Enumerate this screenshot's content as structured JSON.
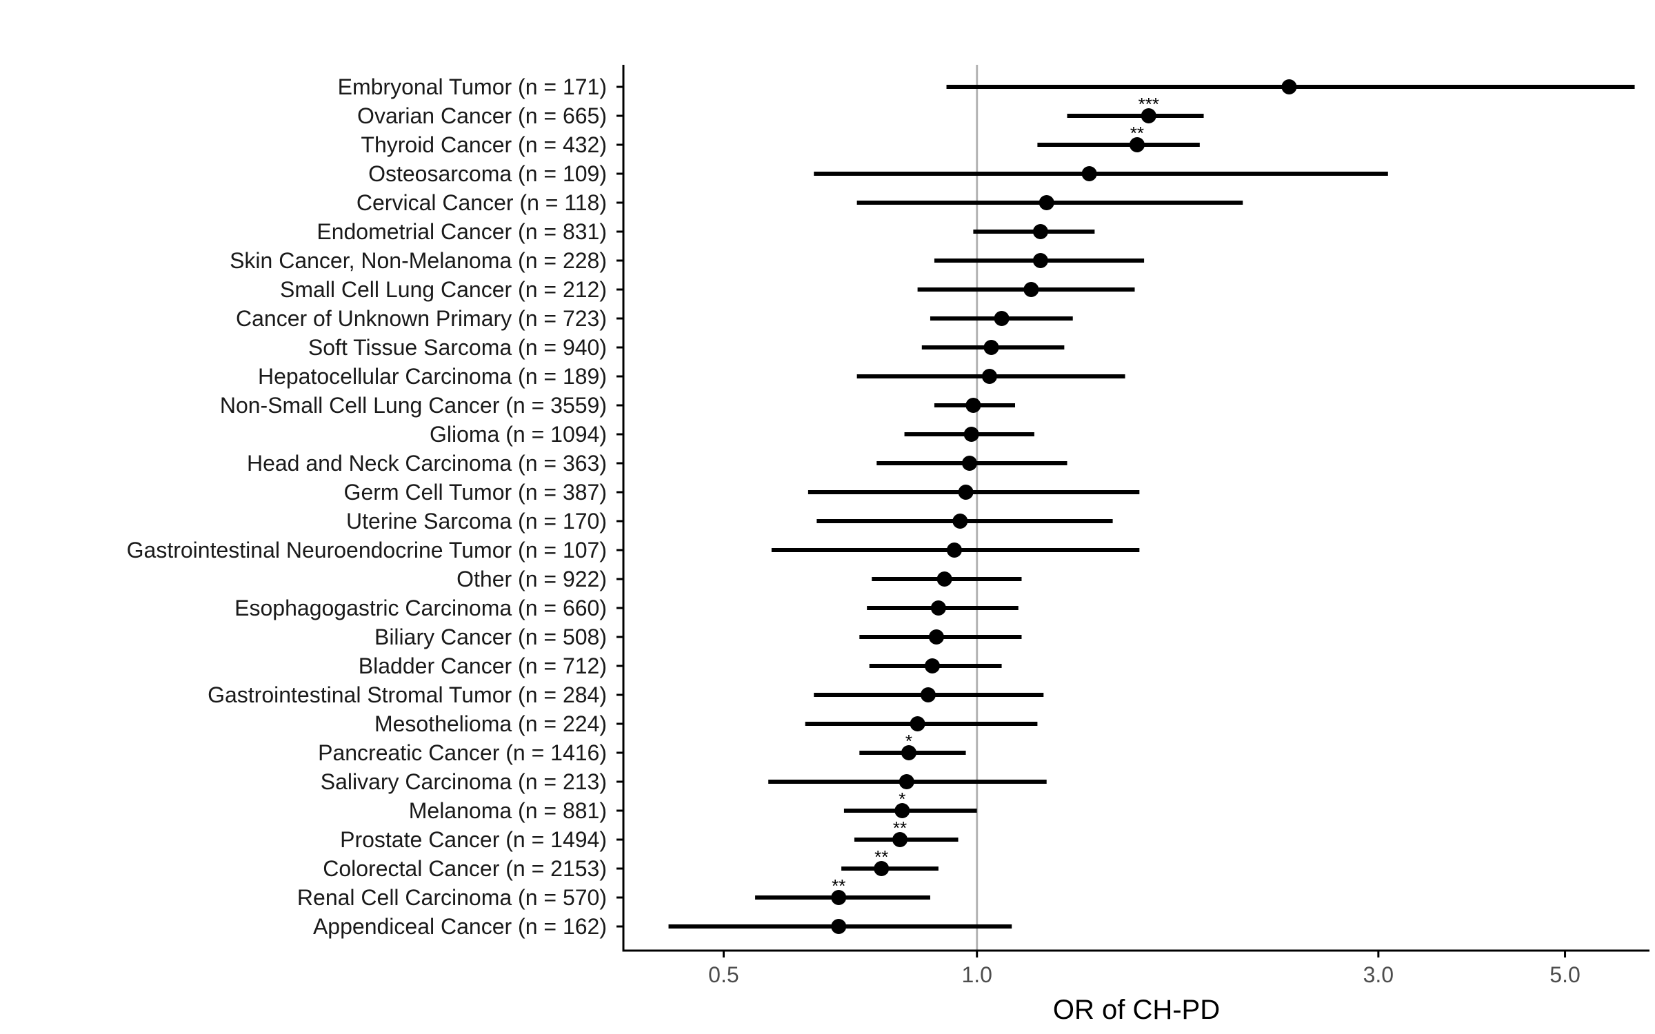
{
  "chart_data": {
    "type": "scatter",
    "subtype": "forest-plot",
    "title": "",
    "xlabel": "OR of CH-PD",
    "ylabel": "",
    "x_scale": "log",
    "xlim": [
      0.38,
      6.3
    ],
    "x_ticks": [
      0.5,
      1.0,
      3.0,
      5.0
    ],
    "x_tick_labels": [
      "0.5",
      "1.0",
      "3.0",
      "5.0"
    ],
    "reference_line": 1.0,
    "grid": false,
    "colors": {
      "points": "#000000",
      "reference_line": "#b3b3b3",
      "axis": "#000000"
    },
    "categories": [
      "Embryonal Tumor (n = 171)",
      "Ovarian Cancer (n = 665)",
      "Thyroid Cancer (n = 432)",
      "Osteosarcoma (n = 109)",
      "Cervical Cancer (n = 118)",
      "Endometrial Cancer (n = 831)",
      "Skin Cancer, Non-Melanoma (n = 228)",
      "Small Cell Lung Cancer (n = 212)",
      "Cancer of Unknown Primary (n = 723)",
      "Soft Tissue Sarcoma (n = 940)",
      "Hepatocellular Carcinoma (n = 189)",
      "Non-Small Cell Lung Cancer (n = 3559)",
      "Glioma (n = 1094)",
      "Head and Neck Carcinoma (n = 363)",
      "Germ Cell Tumor (n = 387)",
      "Uterine Sarcoma (n = 170)",
      "Gastrointestinal Neuroendocrine Tumor (n = 107)",
      "Other (n = 922)",
      "Esophagogastric Carcinoma (n = 660)",
      "Biliary Cancer (n = 508)",
      "Bladder Cancer (n = 712)",
      "Gastrointestinal Stromal Tumor (n = 284)",
      "Mesothelioma (n = 224)",
      "Pancreatic Cancer (n = 1416)",
      "Salivary Carcinoma (n = 213)",
      "Melanoma (n = 881)",
      "Prostate Cancer (n = 1494)",
      "Colorectal Cancer (n = 2153)",
      "Renal Cell Carcinoma (n = 570)",
      "Appendiceal Cancer (n = 162)"
    ],
    "or": [
      2.35,
      1.6,
      1.55,
      1.36,
      1.21,
      1.19,
      1.19,
      1.16,
      1.07,
      1.04,
      1.035,
      0.99,
      0.985,
      0.98,
      0.97,
      0.955,
      0.94,
      0.915,
      0.9,
      0.895,
      0.885,
      0.875,
      0.85,
      0.83,
      0.825,
      0.815,
      0.81,
      0.77,
      0.685,
      0.685
    ],
    "lower": [
      0.92,
      1.28,
      1.18,
      0.64,
      0.72,
      0.99,
      0.89,
      0.85,
      0.88,
      0.86,
      0.72,
      0.89,
      0.82,
      0.76,
      0.63,
      0.645,
      0.57,
      0.75,
      0.74,
      0.725,
      0.745,
      0.64,
      0.625,
      0.725,
      0.565,
      0.695,
      0.715,
      0.69,
      0.545,
      0.43
    ],
    "upper": [
      6.05,
      1.86,
      1.84,
      3.08,
      2.07,
      1.38,
      1.58,
      1.54,
      1.3,
      1.27,
      1.5,
      1.11,
      1.17,
      1.28,
      1.56,
      1.45,
      1.56,
      1.13,
      1.12,
      1.13,
      1.07,
      1.2,
      1.18,
      0.97,
      1.21,
      1.0,
      0.95,
      0.9,
      0.88,
      1.1
    ],
    "significance": [
      "",
      "***",
      "**",
      "",
      "",
      "",
      "",
      "",
      "",
      "",
      "",
      "",
      "",
      "",
      "",
      "",
      "",
      "",
      "",
      "",
      "",
      "",
      "",
      "*",
      "",
      "*",
      "**",
      "**",
      "**",
      ""
    ]
  }
}
